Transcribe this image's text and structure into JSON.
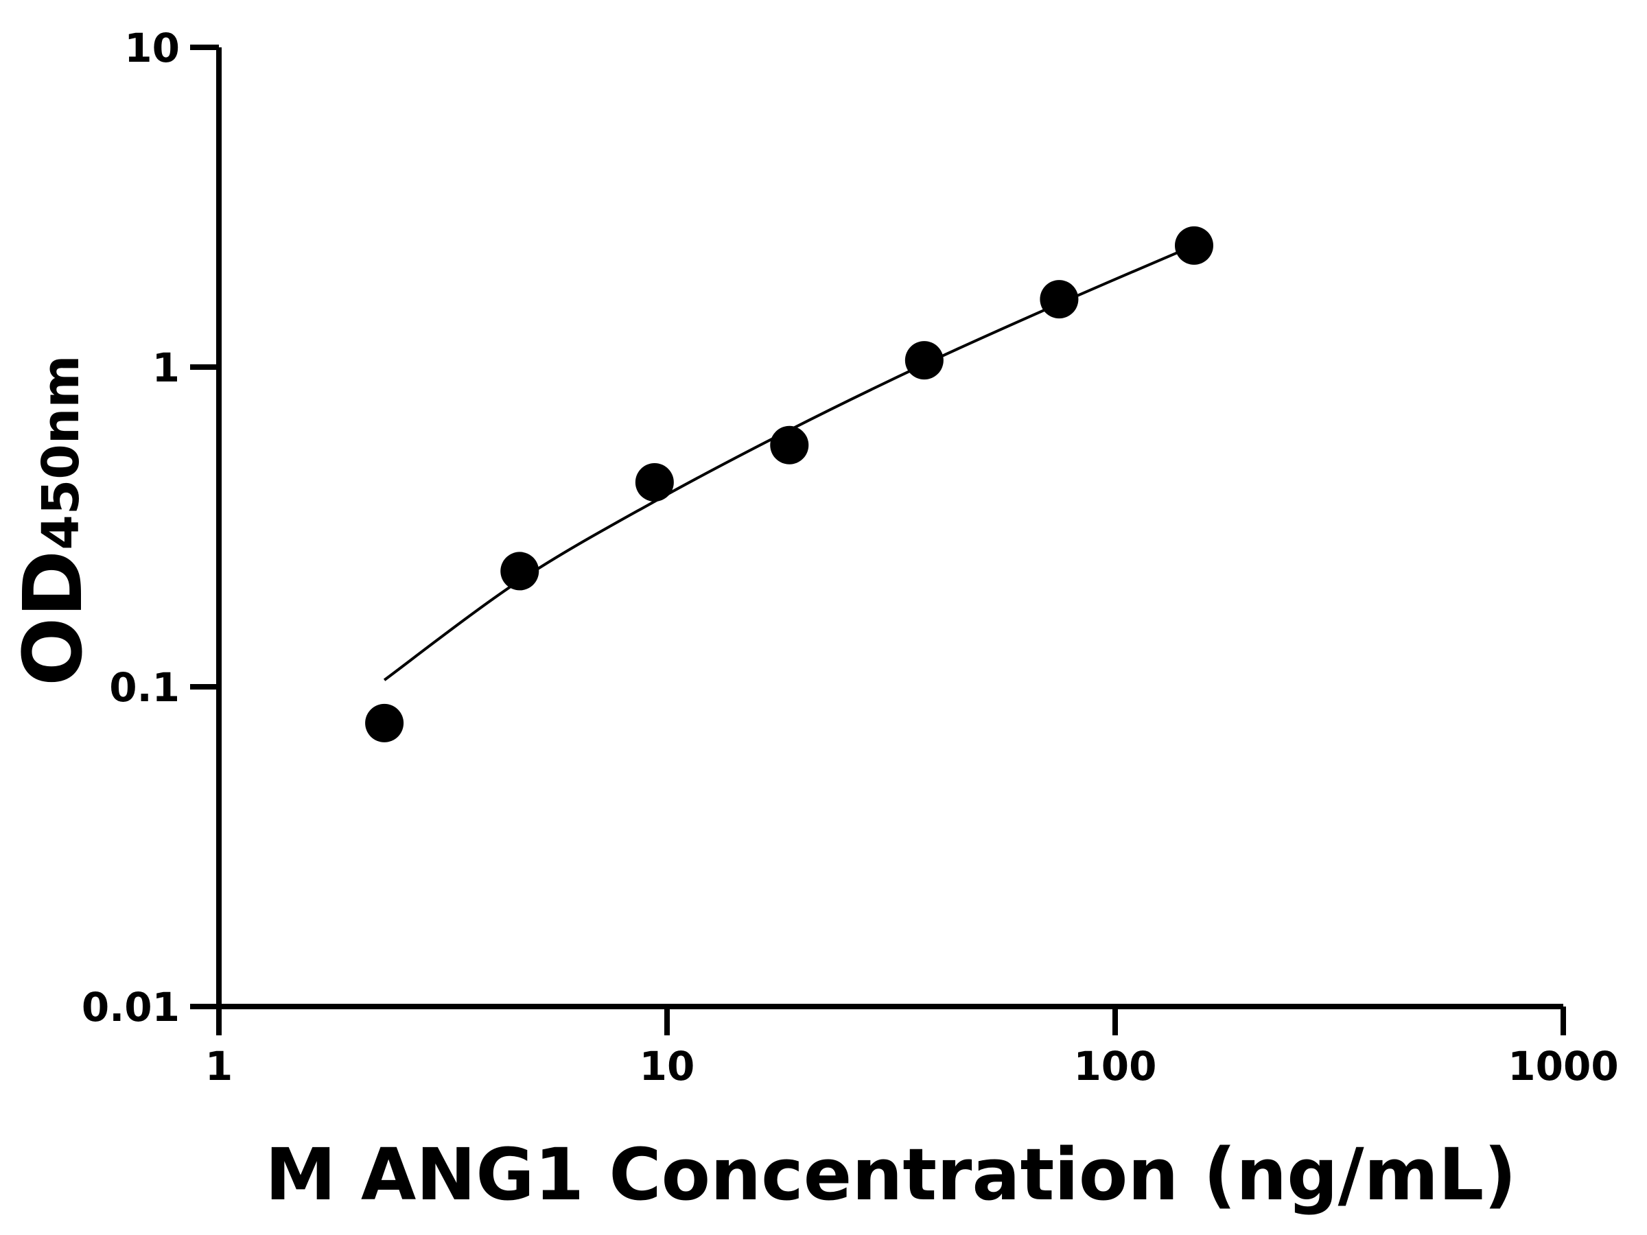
{
  "chart_data": {
    "type": "scatter",
    "xlabel": "M ANG1 Concentration (ng/mL)",
    "ylabel_main": "OD",
    "ylabel_sub": "450nm",
    "x_scale": "log",
    "y_scale": "log",
    "xlim": [
      1,
      1000
    ],
    "ylim": [
      0.01,
      10
    ],
    "x_ticks": [
      "1",
      "10",
      "100",
      "1000"
    ],
    "y_ticks": [
      "0.01",
      "0.1",
      "1",
      "10"
    ],
    "grid": false,
    "points": [
      {
        "x": 2.34,
        "y": 0.077
      },
      {
        "x": 4.69,
        "y": 0.23
      },
      {
        "x": 9.38,
        "y": 0.436
      },
      {
        "x": 18.75,
        "y": 0.57
      },
      {
        "x": 37.5,
        "y": 1.05
      },
      {
        "x": 75,
        "y": 1.63
      },
      {
        "x": 150,
        "y": 2.4
      }
    ],
    "fit_curve": [
      {
        "x": 2.34,
        "y": 0.105
      },
      {
        "x": 4.69,
        "y": 0.215
      },
      {
        "x": 9.38,
        "y": 0.38
      },
      {
        "x": 18.75,
        "y": 0.635
      },
      {
        "x": 37.5,
        "y": 1.02
      },
      {
        "x": 75,
        "y": 1.58
      },
      {
        "x": 150,
        "y": 2.4
      }
    ],
    "color": "#000000"
  }
}
